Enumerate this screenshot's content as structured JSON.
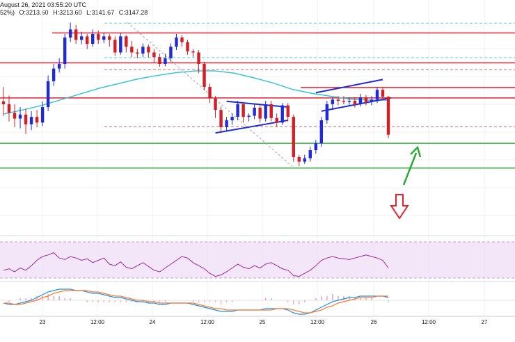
{
  "header": {
    "date_line": "August 26, 2021 03:55:20 UTC",
    "pct_fragment": "52%)",
    "ohlc": {
      "O": "O:3213.60",
      "H": "H:3213.60",
      "L": "L:3141.67",
      "C": "C:3147.28"
    }
  },
  "colors": {
    "up": "#1f2bd8",
    "down": "#d21f26",
    "ma": "#38c5d2",
    "resistance": "#e8212b",
    "support": "#2fb83a",
    "trendline": "#1f2bd8",
    "rsi": "#9c2a9a",
    "rsi_band": "#eddcf5",
    "macd": "#1e90e6",
    "signal": "#ff7a2b",
    "arrow_up": "#2aa836",
    "arrow_down": "#e8212b"
  },
  "chart_data": {
    "type": "candlestick",
    "title": "",
    "x_ticks": [
      "23",
      "12:00",
      "24",
      "12:00",
      "25",
      "12:00",
      "26",
      "12:00",
      "27"
    ],
    "ylim": [
      2975,
      3345
    ],
    "candles": [
      [
        3205,
        3200,
        3230,
        3180
      ],
      [
        3200,
        3185,
        3215,
        3170
      ],
      [
        3185,
        3175,
        3200,
        3160
      ],
      [
        3175,
        3182,
        3195,
        3158
      ],
      [
        3182,
        3165,
        3192,
        3148
      ],
      [
        3165,
        3178,
        3188,
        3155
      ],
      [
        3178,
        3168,
        3190,
        3160
      ],
      [
        3168,
        3195,
        3205,
        3162
      ],
      [
        3195,
        3240,
        3250,
        3188
      ],
      [
        3240,
        3262,
        3270,
        3232
      ],
      [
        3262,
        3270,
        3280,
        3255
      ],
      [
        3270,
        3316,
        3322,
        3262
      ],
      [
        3316,
        3330,
        3342,
        3308
      ],
      [
        3330,
        3312,
        3338,
        3305
      ],
      [
        3312,
        3318,
        3326,
        3304
      ],
      [
        3318,
        3305,
        3322,
        3296
      ],
      [
        3305,
        3322,
        3330,
        3300
      ],
      [
        3322,
        3312,
        3328,
        3305
      ],
      [
        3312,
        3318,
        3324,
        3306
      ],
      [
        3318,
        3312,
        3322,
        3300
      ],
      [
        3312,
        3290,
        3318,
        3284
      ],
      [
        3290,
        3318,
        3324,
        3286
      ],
      [
        3318,
        3300,
        3320,
        3290
      ],
      [
        3300,
        3290,
        3310,
        3282
      ],
      [
        3290,
        3288,
        3296,
        3280
      ],
      [
        3288,
        3300,
        3306,
        3282
      ],
      [
        3300,
        3290,
        3304,
        3281
      ],
      [
        3290,
        3282,
        3296,
        3272
      ],
      [
        3282,
        3270,
        3288,
        3265
      ],
      [
        3270,
        3280,
        3288,
        3266
      ],
      [
        3280,
        3300,
        3306,
        3274
      ],
      [
        3300,
        3316,
        3322,
        3294
      ],
      [
        3316,
        3308,
        3320,
        3300
      ],
      [
        3308,
        3292,
        3312,
        3286
      ],
      [
        3292,
        3290,
        3296,
        3282
      ],
      [
        3290,
        3270,
        3294,
        3254
      ],
      [
        3270,
        3230,
        3274,
        3224
      ],
      [
        3230,
        3210,
        3236,
        3202
      ],
      [
        3210,
        3190,
        3214,
        3176
      ],
      [
        3190,
        3160,
        3196,
        3150
      ],
      [
        3160,
        3172,
        3178,
        3154
      ],
      [
        3172,
        3178,
        3184,
        3164
      ],
      [
        3178,
        3200,
        3206,
        3172
      ],
      [
        3200,
        3178,
        3204,
        3168
      ],
      [
        3178,
        3180,
        3184,
        3170
      ],
      [
        3180,
        3194,
        3200,
        3174
      ],
      [
        3194,
        3175,
        3198,
        3168
      ],
      [
        3175,
        3200,
        3206,
        3170
      ],
      [
        3200,
        3176,
        3206,
        3170
      ],
      [
        3176,
        3168,
        3184,
        3160
      ],
      [
        3168,
        3198,
        3202,
        3164
      ],
      [
        3198,
        3178,
        3202,
        3170
      ],
      [
        3178,
        3108,
        3182,
        3100
      ],
      [
        3108,
        3100,
        3112,
        3092
      ],
      [
        3100,
        3106,
        3112,
        3096
      ],
      [
        3106,
        3120,
        3126,
        3100
      ],
      [
        3120,
        3132,
        3138,
        3114
      ],
      [
        3132,
        3172,
        3178,
        3126
      ],
      [
        3172,
        3200,
        3206,
        3166
      ],
      [
        3200,
        3208,
        3212,
        3190
      ],
      [
        3208,
        3206,
        3214,
        3198
      ],
      [
        3206,
        3205,
        3214,
        3200
      ],
      [
        3205,
        3206,
        3212,
        3198
      ],
      [
        3206,
        3200,
        3212,
        3194
      ],
      [
        3200,
        3212,
        3218,
        3196
      ],
      [
        3212,
        3204,
        3216,
        3198
      ],
      [
        3204,
        3208,
        3214,
        3198
      ],
      [
        3208,
        3225,
        3230,
        3202
      ],
      [
        3225,
        3213,
        3230,
        3208
      ],
      [
        3213,
        3147,
        3214,
        3141
      ]
    ],
    "ma_values": [
      3183,
      3190,
      3198,
      3208,
      3218,
      3228,
      3236,
      3244,
      3250,
      3255,
      3258,
      3258,
      3254,
      3246,
      3237,
      3226,
      3219,
      3214,
      3209,
      3207,
      3207
    ],
    "resistance_levels": [
      3324,
      3272,
      3211,
      3229
    ],
    "support_levels": [
      3132,
      3089
    ],
    "dotted_levels": [
      3341,
      3260,
      3281,
      3161
    ],
    "indicators": [
      "RSI",
      "MACD"
    ]
  }
}
